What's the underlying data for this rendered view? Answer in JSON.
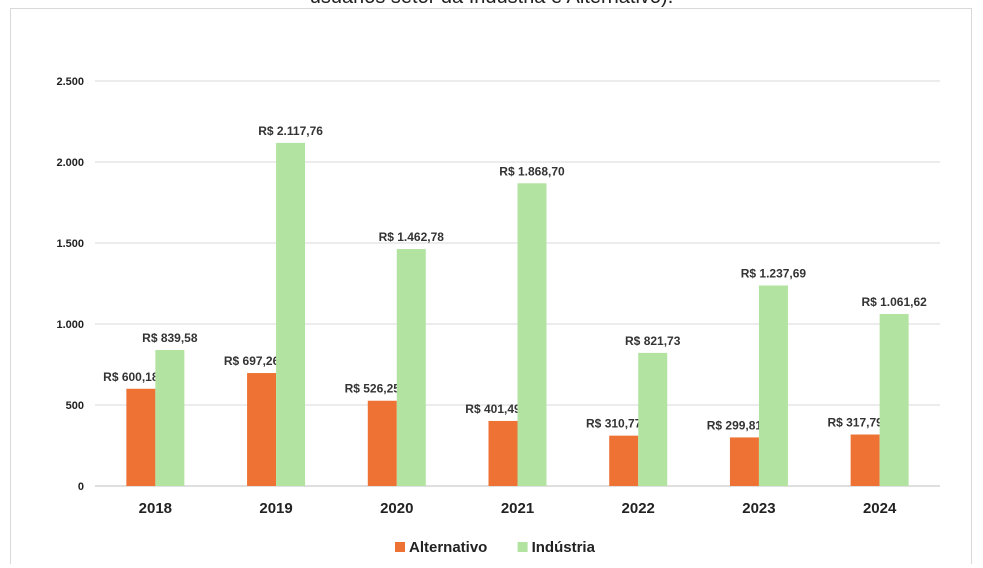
{
  "chart_data": {
    "type": "bar",
    "title": "usuários setor da Indústria e Alternativo).",
    "categories": [
      "2018",
      "2019",
      "2020",
      "2021",
      "2022",
      "2023",
      "2024"
    ],
    "series": [
      {
        "name": "Alternativo",
        "color": "#ed7233",
        "values": [
          600.18,
          697.26,
          526.25,
          401.49,
          310.77,
          299.81,
          317.79
        ],
        "labels": [
          "R$ 600,18",
          "R$ 697,26",
          "R$ 526,25",
          "R$ 401,49",
          "R$ 310,77",
          "R$ 299,81",
          "R$ 317,79"
        ]
      },
      {
        "name": "Indústria",
        "color": "#b3e3a0",
        "values": [
          839.58,
          2117.76,
          1462.78,
          1868.7,
          821.73,
          1237.69,
          1061.62
        ],
        "labels": [
          "R$ 839,58",
          "R$ 2.117,76",
          "R$ 1.462,78",
          "R$ 1.868,70",
          "R$ 821,73",
          "R$ 1.237,69",
          "R$ 1.061,62"
        ]
      }
    ],
    "yticks": [
      0,
      500,
      1000,
      1500,
      2000,
      2500
    ],
    "ytick_labels": [
      "0",
      "500",
      "1.000",
      "1.500",
      "2.000",
      "2.500"
    ],
    "ylim": [
      0,
      2500
    ],
    "grid": true,
    "legend": "bottom"
  }
}
